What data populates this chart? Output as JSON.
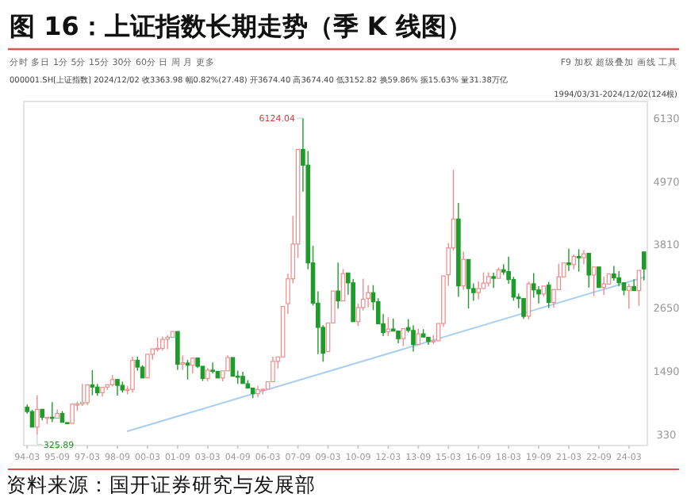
{
  "chart_data": {
    "type": "candlestick",
    "title": "图 16：上证指数长期走势（季 K 线图）",
    "annotations": [
      "分时  多日  1分  5分  15分  30分  60分  日  周  月  更多",
      "F9  加权  超级叠加  画线  工具",
      "000001.SH[上证指数]  2024/12/02  收3363.98  幅0.82%(27.48)  开3674.40  高3674.40  低3152.82  换59.86%  振15.63%  量31.38万亿",
      "1994/03/31-2024/12/02(124根)",
      "资料来源：国开证券研究与发展部",
      {
        "text": "6124.04",
        "x": "2007-12",
        "y": 6124.04
      },
      {
        "text": "325.89",
        "x": "1994-09",
        "y": 325.89
      }
    ],
    "x": [
      "1994-03",
      "1994-06",
      "1994-09",
      "1994-12",
      "1995-03",
      "1995-06",
      "1995-09",
      "1995-12",
      "1996-03",
      "1996-06",
      "1996-09",
      "1996-12",
      "1997-03",
      "1997-06",
      "1997-09",
      "1997-12",
      "1998-03",
      "1998-06",
      "1998-09",
      "1998-12",
      "1999-03",
      "1999-06",
      "1999-09",
      "1999-12",
      "2000-03",
      "2000-06",
      "2000-09",
      "2000-12",
      "2001-03",
      "2001-06",
      "2001-09",
      "2001-12",
      "2002-03",
      "2002-06",
      "2002-09",
      "2002-12",
      "2003-03",
      "2003-06",
      "2003-09",
      "2003-12",
      "2004-03",
      "2004-06",
      "2004-09",
      "2004-12",
      "2005-03",
      "2005-06",
      "2005-09",
      "2005-12",
      "2006-03",
      "2006-06",
      "2006-09",
      "2006-12",
      "2007-03",
      "2007-06",
      "2007-09",
      "2007-12",
      "2008-03",
      "2008-06",
      "2008-09",
      "2008-12",
      "2009-03",
      "2009-06",
      "2009-09",
      "2009-12",
      "2010-03",
      "2010-06",
      "2010-09",
      "2010-12",
      "2011-03",
      "2011-06",
      "2011-09",
      "2011-12",
      "2012-03",
      "2012-06",
      "2012-09",
      "2012-12",
      "2013-03",
      "2013-06",
      "2013-09",
      "2013-12",
      "2014-03",
      "2014-06",
      "2014-09",
      "2014-12",
      "2015-03",
      "2015-06",
      "2015-09",
      "2015-12",
      "2016-03",
      "2016-06",
      "2016-09",
      "2016-12",
      "2017-03",
      "2017-06",
      "2017-09",
      "2017-12",
      "2018-03",
      "2018-06",
      "2018-09",
      "2018-12",
      "2019-03",
      "2019-06",
      "2019-09",
      "2019-12",
      "2020-03",
      "2020-06",
      "2020-09",
      "2020-12",
      "2021-03",
      "2021-06",
      "2021-09",
      "2021-12",
      "2022-03",
      "2022-06",
      "2022-09",
      "2022-12",
      "2023-03",
      "2023-06",
      "2023-09",
      "2023-12",
      "2024-03",
      "2024-06",
      "2024-09",
      "2024-12"
    ],
    "ohlc": [
      [
        833,
        881,
        715,
        752
      ],
      [
        752,
        785,
        462,
        467
      ],
      [
        467,
        1052,
        325.89,
        792
      ],
      [
        792,
        800,
        590,
        648
      ],
      [
        637,
        658,
        524,
        647
      ],
      [
        647,
        926,
        560,
        630
      ],
      [
        630,
        790,
        625,
        717
      ],
      [
        717,
        760,
        550,
        555
      ],
      [
        550,
        575,
        512,
        537
      ],
      [
        537,
        890,
        530,
        888
      ],
      [
        888,
        934,
        760,
        889
      ],
      [
        889,
        1258,
        855,
        917
      ],
      [
        914,
        1250,
        870,
        1241
      ],
      [
        1241,
        1510,
        1050,
        1200
      ],
      [
        1200,
        1258,
        1041,
        1097
      ],
      [
        1097,
        1220,
        1025,
        1194
      ],
      [
        1200,
        1253,
        1150,
        1243
      ],
      [
        1243,
        1422,
        1210,
        1339
      ],
      [
        1339,
        1340,
        1043,
        1232
      ],
      [
        1232,
        1300,
        1100,
        1147
      ],
      [
        1144,
        1220,
        1064,
        1158
      ],
      [
        1158,
        1756,
        1100,
        1690
      ],
      [
        1690,
        1757,
        1500,
        1566
      ],
      [
        1566,
        1600,
        1341,
        1367
      ],
      [
        1368,
        1815,
        1361,
        1800
      ],
      [
        1800,
        1912,
        1700,
        1900
      ],
      [
        1900,
        2114,
        1850,
        1910
      ],
      [
        1910,
        2125,
        1870,
        2073
      ],
      [
        2077,
        2150,
        1893,
        2112
      ],
      [
        2112,
        2245,
        2100,
        2218
      ],
      [
        2218,
        2242,
        1514,
        1620
      ],
      [
        1620,
        1776,
        1513,
        1646
      ],
      [
        1640,
        1700,
        1339,
        1600
      ],
      [
        1600,
        1748,
        1450,
        1732
      ],
      [
        1732,
        1733,
        1550,
        1581
      ],
      [
        1581,
        1600,
        1311,
        1358
      ],
      [
        1357,
        1550,
        1311,
        1510
      ],
      [
        1510,
        1649,
        1450,
        1487
      ],
      [
        1487,
        1500,
        1350,
        1367
      ],
      [
        1367,
        1500,
        1307,
        1497
      ],
      [
        1497,
        1783,
        1496,
        1741
      ],
      [
        1741,
        1760,
        1399,
        1400
      ],
      [
        1400,
        1500,
        1259,
        1396
      ],
      [
        1396,
        1480,
        1259,
        1266
      ],
      [
        1261,
        1328,
        1161,
        1181
      ],
      [
        1181,
        1200,
        998,
        1080
      ],
      [
        1080,
        1223,
        1020,
        1155
      ],
      [
        1155,
        1171,
        1067,
        1161
      ],
      [
        1163,
        1300,
        1161,
        1299
      ],
      [
        1299,
        1757,
        1290,
        1672
      ],
      [
        1672,
        1780,
        1541,
        1752
      ],
      [
        1752,
        2698,
        1750,
        2675
      ],
      [
        2728,
        3275,
        2541,
        3183
      ],
      [
        3183,
        4336,
        3100,
        3820
      ],
      [
        3820,
        5562,
        3563,
        5552
      ],
      [
        5552,
        6124.04,
        4778,
        5262
      ],
      [
        5265,
        5522,
        3357,
        3473
      ],
      [
        3473,
        3786,
        2693,
        2736
      ],
      [
        2736,
        2953,
        1802,
        2293
      ],
      [
        2293,
        2333,
        1664,
        1821
      ],
      [
        1849,
        2402,
        1844,
        2373
      ],
      [
        2373,
        2965,
        2357,
        2959
      ],
      [
        2959,
        3478,
        2639,
        2779
      ],
      [
        2779,
        3361,
        2760,
        3277
      ],
      [
        3289,
        3306,
        2890,
        3109
      ],
      [
        3109,
        3181,
        2382,
        2398
      ],
      [
        2398,
        2724,
        2319,
        2656
      ],
      [
        2656,
        3186,
        2600,
        2808
      ],
      [
        2825,
        3067,
        2661,
        2928
      ],
      [
        2928,
        3067,
        2610,
        2762
      ],
      [
        2762,
        2826,
        2331,
        2359
      ],
      [
        2359,
        2536,
        2134,
        2199
      ],
      [
        2212,
        2478,
        2132,
        2263
      ],
      [
        2263,
        2453,
        2221,
        2225
      ],
      [
        2225,
        2242,
        2002,
        2086
      ],
      [
        2086,
        2276,
        1949,
        2269
      ],
      [
        2289,
        2444,
        2199,
        2237
      ],
      [
        2237,
        2334,
        1849,
        1979
      ],
      [
        1979,
        2270,
        1950,
        2175
      ],
      [
        2175,
        2260,
        2101,
        2116
      ],
      [
        2112,
        2113,
        1974,
        2033
      ],
      [
        2033,
        2150,
        1991,
        2048
      ],
      [
        2048,
        2367,
        2030,
        2364
      ],
      [
        2364,
        3239,
        2300,
        3235
      ],
      [
        3258,
        3835,
        3050,
        3748
      ],
      [
        3748,
        5178,
        3700,
        4277
      ],
      [
        4277,
        4572,
        2850,
        3053
      ],
      [
        3053,
        3684,
        2983,
        3539
      ],
      [
        3536,
        3539,
        2638,
        3004
      ],
      [
        3004,
        3097,
        2780,
        2930
      ],
      [
        2930,
        3140,
        2807,
        3005
      ],
      [
        3005,
        3301,
        3002,
        3104
      ],
      [
        3105,
        3302,
        3045,
        3223
      ],
      [
        3223,
        3295,
        3016,
        3192
      ],
      [
        3192,
        3391,
        3170,
        3349
      ],
      [
        3349,
        3451,
        3255,
        3307
      ],
      [
        3314,
        3587,
        3091,
        3169
      ],
      [
        3169,
        3220,
        2782,
        2847
      ],
      [
        2847,
        2915,
        2644,
        2821
      ],
      [
        2821,
        2834,
        2449,
        2494
      ],
      [
        2497,
        3130,
        2440,
        3091
      ],
      [
        3091,
        3288,
        2838,
        2979
      ],
      [
        2979,
        3048,
        2733,
        2905
      ],
      [
        2905,
        3069,
        2857,
        3050
      ],
      [
        3066,
        3127,
        2647,
        2750
      ],
      [
        2750,
        3000,
        2647,
        2985
      ],
      [
        2985,
        3458,
        2983,
        3218
      ],
      [
        3218,
        3474,
        3200,
        3473
      ],
      [
        3474,
        3732,
        3328,
        3442
      ],
      [
        3442,
        3629,
        3356,
        3591
      ],
      [
        3591,
        3723,
        3313,
        3568
      ],
      [
        3568,
        3708,
        3450,
        3640
      ],
      [
        3649,
        3651,
        3023,
        3252
      ],
      [
        3252,
        3416,
        2863,
        3399
      ],
      [
        3399,
        3425,
        3021,
        3024
      ],
      [
        3024,
        3226,
        2886,
        3089
      ],
      [
        3087,
        3300,
        3064,
        3273
      ],
      [
        3273,
        3418,
        3150,
        3202
      ],
      [
        3202,
        3322,
        3048,
        3110
      ],
      [
        3110,
        3114,
        2882,
        2975
      ],
      [
        2972,
        3090,
        2635,
        3041
      ],
      [
        3041,
        3174,
        2952,
        2967
      ],
      [
        2967,
        3358,
        2689,
        3336
      ],
      [
        3674.4,
        3674.4,
        3152.82,
        3363.98
      ]
    ],
    "colors": [
      "#1e9b2a",
      "#1e9b2a",
      "#f28b8b",
      "#1e9b2a",
      "#f28b8b",
      "#1e9b2a",
      "#f28b8b",
      "#1e9b2a",
      "#1e9b2a",
      "#f28b8b",
      "#f28b8b",
      "#f28b8b",
      "#f28b8b",
      "#1e9b2a",
      "#1e9b2a",
      "#f28b8b",
      "#f28b8b",
      "#f28b8b",
      "#1e9b2a",
      "#1e9b2a",
      "#f28b8b",
      "#f28b8b",
      "#1e9b2a",
      "#1e9b2a",
      "#f28b8b",
      "#f28b8b",
      "#f28b8b",
      "#f28b8b",
      "#f28b8b",
      "#f28b8b",
      "#1e9b2a",
      "#f28b8b",
      "#1e9b2a",
      "#f28b8b",
      "#1e9b2a",
      "#1e9b2a",
      "#f28b8b",
      "#1e9b2a",
      "#1e9b2a",
      "#f28b8b",
      "#f28b8b",
      "#1e9b2a",
      "#1e9b2a",
      "#1e9b2a",
      "#1e9b2a",
      "#1e9b2a",
      "#f28b8b",
      "#f28b8b",
      "#f28b8b",
      "#f28b8b",
      "#f28b8b",
      "#f28b8b",
      "#f28b8b",
      "#f28b8b",
      "#f28b8b",
      "#1e9b2a",
      "#1e9b2a",
      "#1e9b2a",
      "#1e9b2a",
      "#1e9b2a",
      "#f28b8b",
      "#f28b8b",
      "#1e9b2a",
      "#f28b8b",
      "#1e9b2a",
      "#1e9b2a",
      "#f28b8b",
      "#f28b8b",
      "#f28b8b",
      "#1e9b2a",
      "#1e9b2a",
      "#1e9b2a",
      "#f28b8b",
      "#1e9b2a",
      "#1e9b2a",
      "#f28b8b",
      "#1e9b2a",
      "#1e9b2a",
      "#f28b8b",
      "#1e9b2a",
      "#1e9b2a",
      "#f28b8b",
      "#f28b8b",
      "#f28b8b",
      "#f28b8b",
      "#f28b8b",
      "#1e9b2a",
      "#f28b8b",
      "#1e9b2a",
      "#1e9b2a",
      "#f28b8b",
      "#f28b8b",
      "#f28b8b",
      "#1e9b2a",
      "#f28b8b",
      "#1e9b2a",
      "#1e9b2a",
      "#1e9b2a",
      "#1e9b2a",
      "#1e9b2a",
      "#f28b8b",
      "#1e9b2a",
      "#1e9b2a",
      "#f28b8b",
      "#1e9b2a",
      "#f28b8b",
      "#f28b8b",
      "#f28b8b",
      "#1e9b2a",
      "#f28b8b",
      "#1e9b2a",
      "#f28b8b",
      "#1e9b2a",
      "#f28b8b",
      "#1e9b2a",
      "#f28b8b",
      "#f28b8b",
      "#1e9b2a",
      "#1e9b2a",
      "#1e9b2a",
      "#f28b8b",
      "#1e9b2a",
      "#f28b8b",
      "#1e9b2a"
    ],
    "series": [
      {
        "type": "line",
        "color": "#a9cfee",
        "x": [
          "1999-03",
          "2024-12"
        ],
        "values": [
          390,
          3210
        ]
      }
    ],
    "xlim": [
      "1994-01",
      "2025-02"
    ],
    "ylim": [
      130,
      6430
    ],
    "xticks": [
      {
        "value": "1994-03",
        "label": "94-03"
      },
      {
        "value": "1995-09",
        "label": "95-09"
      },
      {
        "value": "1997-03",
        "label": "97-03"
      },
      {
        "value": "1998-09",
        "label": "98-09"
      },
      {
        "value": "2000-03",
        "label": "00-03"
      },
      {
        "value": "2001-09",
        "label": "01-09"
      },
      {
        "value": "2003-03",
        "label": "03-03"
      },
      {
        "value": "2004-09",
        "label": "04-09"
      },
      {
        "value": "2006-03",
        "label": "06-03"
      },
      {
        "value": "2007-09",
        "label": "07-09"
      },
      {
        "value": "2009-03",
        "label": "09-03"
      },
      {
        "value": "2010-09",
        "label": "10-09"
      },
      {
        "value": "2012-03",
        "label": "12-03"
      },
      {
        "value": "2013-09",
        "label": "13-09"
      },
      {
        "value": "2015-03",
        "label": "15-03"
      },
      {
        "value": "2016-09",
        "label": "16-09"
      },
      {
        "value": "2018-03",
        "label": "18-03"
      },
      {
        "value": "2019-09",
        "label": "19-09"
      },
      {
        "value": "2021-03",
        "label": "21-03"
      },
      {
        "value": "2022-09",
        "label": "22-09"
      },
      {
        "value": "2024-03",
        "label": "24-03"
      }
    ],
    "yticks": [
      330,
      1490,
      2650,
      3810,
      4970,
      6130
    ]
  }
}
